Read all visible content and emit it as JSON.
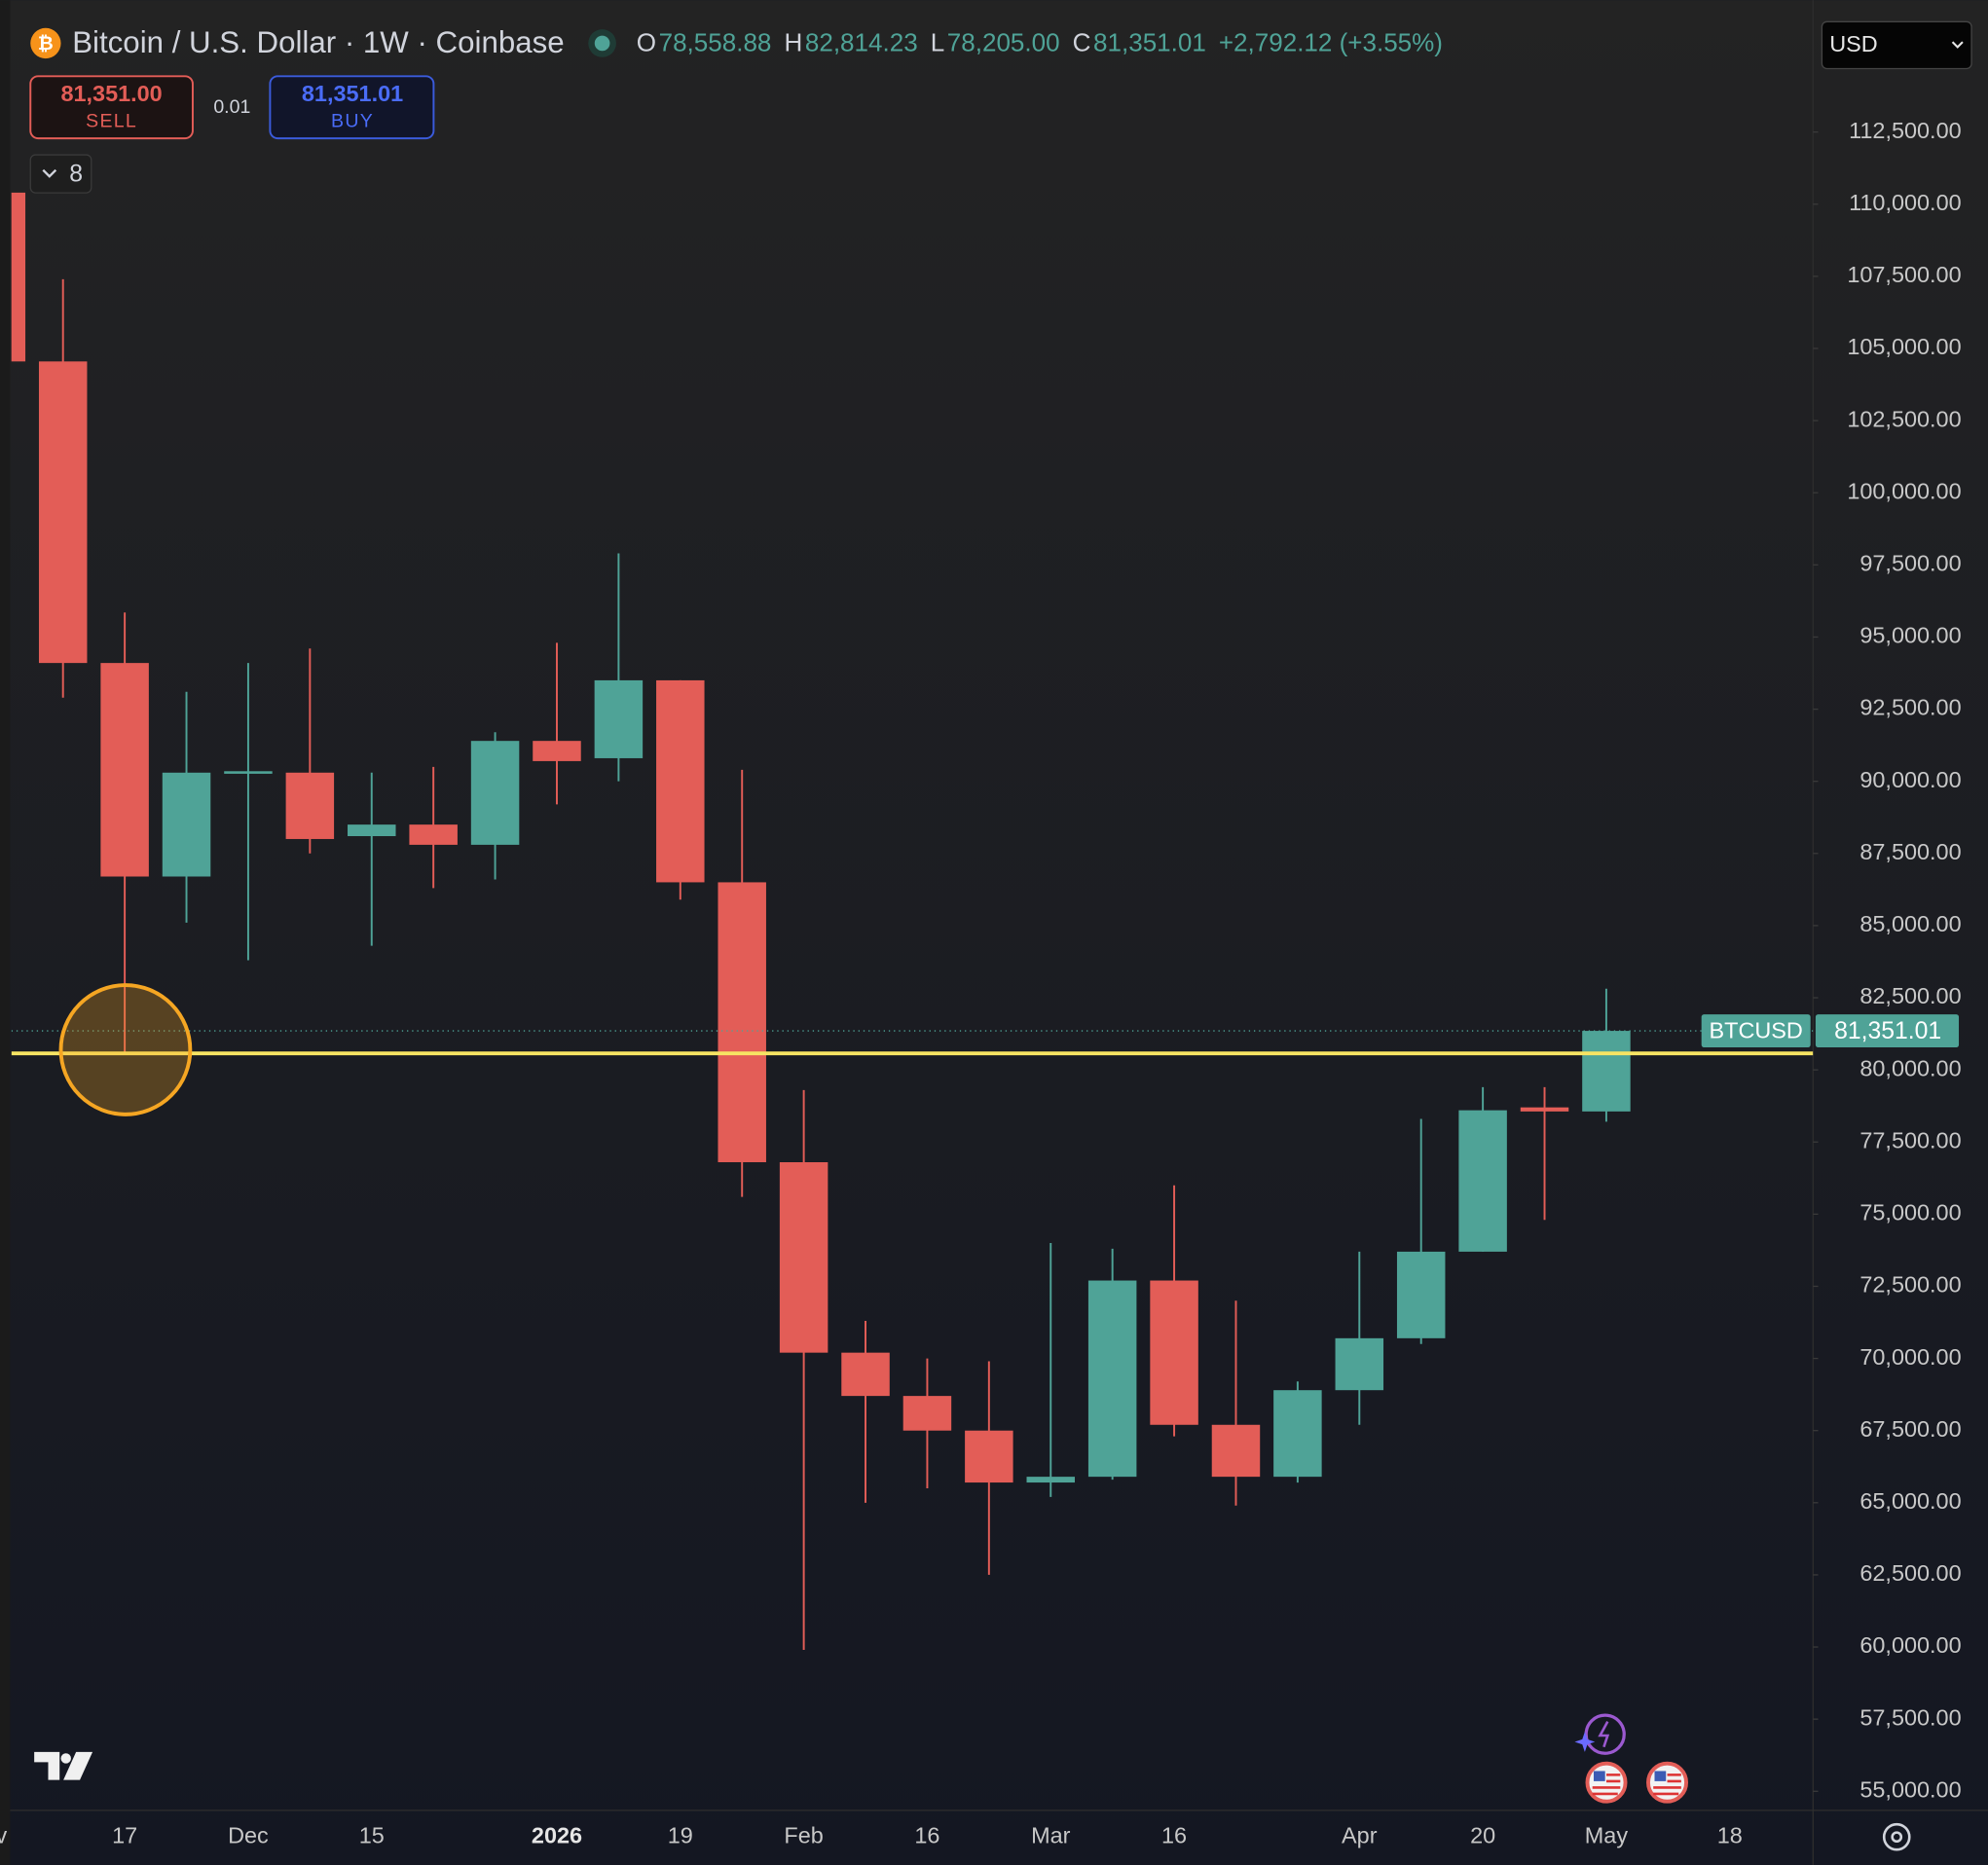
{
  "header": {
    "icon": "₿",
    "title": "Bitcoin / U.S. Dollar · 1W · Coinbase",
    "ohlc": [
      {
        "key": "O",
        "value": "78,558.88"
      },
      {
        "key": "H",
        "value": "82,814.23"
      },
      {
        "key": "L",
        "value": "78,205.00"
      },
      {
        "key": "C",
        "value": "81,351.01"
      }
    ],
    "change": "+2,792.12 (+3.55%)",
    "currency": "USD"
  },
  "trade_panel": {
    "sell_price": "81,351.00",
    "sell": "SELL",
    "quantity": "0.01",
    "buy_price": "81,351.01",
    "buy": "BUY"
  },
  "indicators_count": 8,
  "chart_data": {
    "type": "candlestick",
    "categories": [
      "v",
      null,
      "17",
      null,
      "Dec",
      null,
      "15",
      null,
      null,
      "2026",
      null,
      "19",
      null,
      "Feb",
      null,
      "16",
      null,
      "Mar",
      null,
      "16",
      null,
      null,
      "Apr",
      null,
      "20",
      null,
      "May",
      null,
      "18"
    ],
    "bold_category_index": 9,
    "open": [
      110400,
      104550,
      94100,
      86700,
      90300,
      90300,
      88100,
      88500,
      87800,
      91400,
      90800,
      93500,
      86500,
      76800,
      70200,
      68700,
      67500,
      65700,
      65900,
      72700,
      67700,
      65900,
      68900,
      70700,
      73700,
      78700,
      78558.88,
      null,
      null
    ],
    "high": [
      110400,
      107400,
      95850,
      93100,
      94100,
      94600,
      90300,
      90500,
      91700,
      94800,
      97900,
      93500,
      90400,
      79300,
      71300,
      70000,
      69900,
      74000,
      73800,
      76000,
      72000,
      69200,
      73700,
      78300,
      79400,
      79400,
      82814.23,
      null,
      null
    ],
    "low": [
      104550,
      92900,
      80600,
      85100,
      83800,
      87500,
      84300,
      86300,
      86600,
      89200,
      90000,
      85900,
      75600,
      59900,
      65000,
      65500,
      62500,
      65200,
      65800,
      67300,
      64900,
      65700,
      67700,
      70500,
      73700,
      74800,
      78205.0,
      null,
      null
    ],
    "close": [
      104550,
      94100,
      86700,
      90300,
      90350,
      88000,
      88500,
      87800,
      91400,
      90700,
      93500,
      86500,
      76800,
      70200,
      68700,
      67500,
      65700,
      65900,
      72700,
      67700,
      65900,
      68900,
      70700,
      73700,
      78600,
      78558.89,
      81351.01,
      null,
      null
    ],
    "up_color": "#4fa397",
    "down_color": "#e35d57",
    "ylim": [
      54340,
      117070
    ],
    "yticks": [
      {
        "value": 55000,
        "label": "55,000.00"
      },
      {
        "value": 57500,
        "label": "57,500.00"
      },
      {
        "value": 60000,
        "label": "60,000.00"
      },
      {
        "value": 62500,
        "label": "62,500.00"
      },
      {
        "value": 65000,
        "label": "65,000.00"
      },
      {
        "value": 67500,
        "label": "67,500.00"
      },
      {
        "value": 70000,
        "label": "70,000.00"
      },
      {
        "value": 72500,
        "label": "72,500.00"
      },
      {
        "value": 75000,
        "label": "75,000.00"
      },
      {
        "value": 77500,
        "label": "77,500.00"
      },
      {
        "value": 80000,
        "label": "80,000.00"
      },
      {
        "value": 82500,
        "label": "82,500.00"
      },
      {
        "value": 85000,
        "label": "85,000.00"
      },
      {
        "value": 87500,
        "label": "87,500.00"
      },
      {
        "value": 90000,
        "label": "90,000.00"
      },
      {
        "value": 92500,
        "label": "92,500.00"
      },
      {
        "value": 95000,
        "label": "95,000.00"
      },
      {
        "value": 97500,
        "label": "97,500.00"
      },
      {
        "value": 100000,
        "label": "100,000.00"
      },
      {
        "value": 102500,
        "label": "102,500.00"
      },
      {
        "value": 105000,
        "label": "105,000.00"
      },
      {
        "value": 107500,
        "label": "107,500.00"
      },
      {
        "value": 110000,
        "label": "110,000.00"
      },
      {
        "value": 112500,
        "label": "112,500.00"
      }
    ],
    "grid": false,
    "hline": {
      "value": 80570,
      "color": "#f7e463"
    },
    "last_price": {
      "symbol": "BTCUSD",
      "value": 81351.01,
      "label": "81,351.01"
    }
  }
}
